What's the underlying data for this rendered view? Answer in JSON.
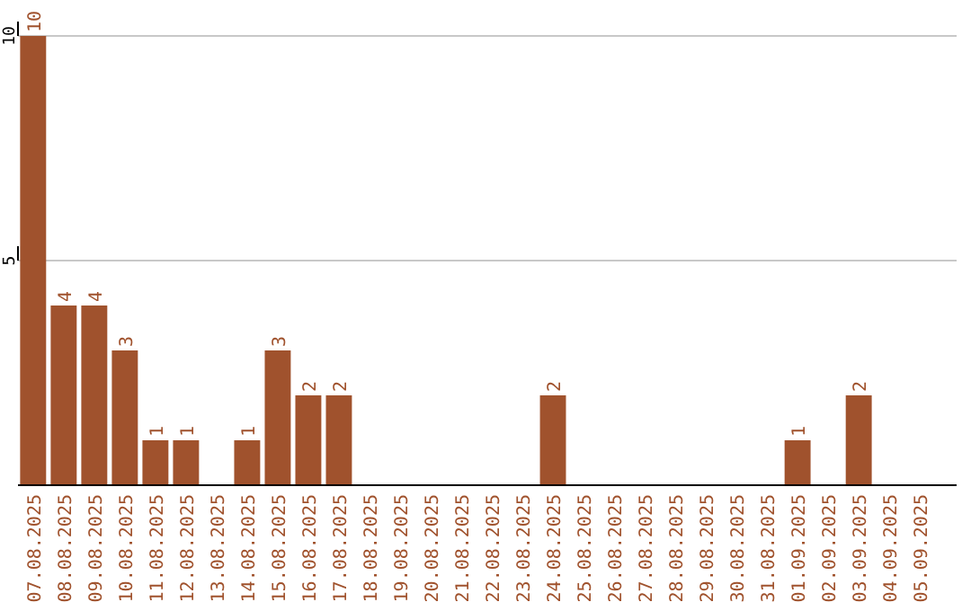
{
  "chart_data": {
    "type": "bar",
    "categories": [
      "07.08.2025",
      "08.08.2025",
      "09.08.2025",
      "10.08.2025",
      "11.08.2025",
      "12.08.2025",
      "13.08.2025",
      "14.08.2025",
      "15.08.2025",
      "16.08.2025",
      "17.08.2025",
      "18.08.2025",
      "19.08.2025",
      "20.08.2025",
      "21.08.2025",
      "22.08.2025",
      "23.08.2025",
      "24.08.2025",
      "25.08.2025",
      "26.08.2025",
      "27.08.2025",
      "28.08.2025",
      "29.08.2025",
      "30.08.2025",
      "31.08.2025",
      "01.09.2025",
      "02.09.2025",
      "03.09.2025",
      "04.09.2025",
      "05.09.2025"
    ],
    "values": [
      10,
      4,
      4,
      3,
      1,
      1,
      0,
      1,
      3,
      2,
      2,
      0,
      0,
      0,
      0,
      0,
      0,
      2,
      0,
      0,
      0,
      0,
      0,
      0,
      0,
      1,
      0,
      2,
      0,
      0
    ],
    "value_labels": [
      "10",
      "4",
      "4",
      "3",
      "1",
      "1",
      null,
      "1",
      "3",
      "2",
      "2",
      null,
      null,
      null,
      null,
      null,
      null,
      "2",
      null,
      null,
      null,
      null,
      null,
      null,
      null,
      "1",
      null,
      "2",
      null,
      null
    ],
    "color": "#a0522d",
    "ylim": [
      0,
      10
    ],
    "yticks": [
      5,
      10
    ],
    "grid": "y"
  }
}
